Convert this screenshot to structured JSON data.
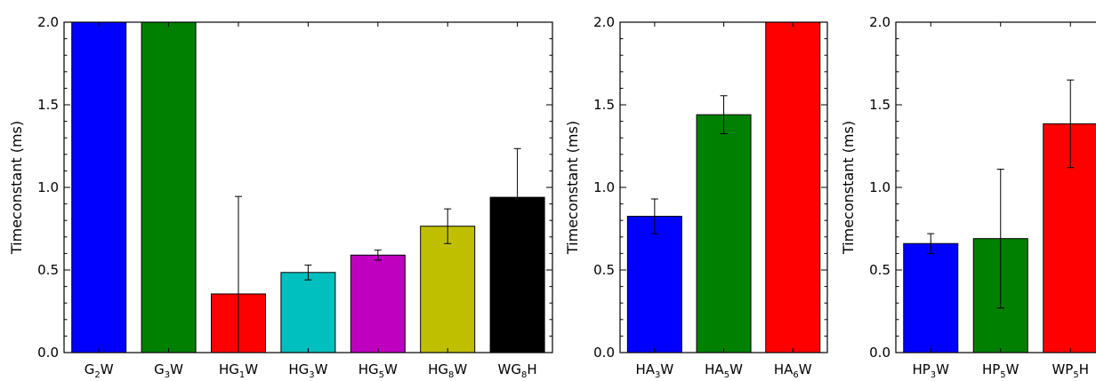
{
  "chart_data": [
    {
      "type": "bar",
      "ylabel": "Timeconstant (ms)",
      "ylim": [
        0,
        2.0
      ],
      "yticks": [
        "0.0",
        "0.5",
        "1.0",
        "1.5",
        "2.0"
      ],
      "grid": false,
      "categories": [
        {
          "base": "G",
          "sub": "2",
          "tail": "W"
        },
        {
          "base": "G",
          "sub": "3",
          "tail": "W"
        },
        {
          "base": "HG",
          "sub": "1",
          "tail": "W"
        },
        {
          "base": "HG",
          "sub": "3",
          "tail": "W"
        },
        {
          "base": "HG",
          "sub": "5",
          "tail": "W"
        },
        {
          "base": "HG",
          "sub": "8",
          "tail": "W"
        },
        {
          "base": "WG",
          "sub": "8",
          "tail": "H"
        }
      ],
      "values": [
        2.0,
        2.0,
        0.355,
        0.485,
        0.59,
        0.765,
        0.94
      ],
      "errors": [
        null,
        null,
        0.59,
        0.045,
        0.03,
        0.105,
        0.295
      ],
      "colors": [
        "#0000ff",
        "#008000",
        "#ff0000",
        "#00bfbf",
        "#bf00bf",
        "#bfbf00",
        "#000000"
      ]
    },
    {
      "type": "bar",
      "ylabel": "Timeconstant (ms)",
      "ylim": [
        0,
        2.0
      ],
      "yticks": [
        "0.0",
        "0.5",
        "1.0",
        "1.5",
        "2.0"
      ],
      "grid": false,
      "categories": [
        {
          "base": "HA",
          "sub": "3",
          "tail": "W"
        },
        {
          "base": "HA",
          "sub": "5",
          "tail": "W"
        },
        {
          "base": "HA",
          "sub": "6",
          "tail": "W"
        }
      ],
      "values": [
        0.825,
        1.44,
        2.0
      ],
      "errors": [
        0.105,
        0.115,
        null
      ],
      "colors": [
        "#0000ff",
        "#008000",
        "#ff0000"
      ]
    },
    {
      "type": "bar",
      "ylabel": "Timeconstant (ms)",
      "ylim": [
        0,
        2.0
      ],
      "yticks": [
        "0.0",
        "0.5",
        "1.0",
        "1.5",
        "2.0"
      ],
      "grid": false,
      "categories": [
        {
          "base": "HP",
          "sub": "3",
          "tail": "W"
        },
        {
          "base": "HP",
          "sub": "5",
          "tail": "W"
        },
        {
          "base": "WP",
          "sub": "5",
          "tail": "H"
        }
      ],
      "values": [
        0.66,
        0.69,
        1.385
      ],
      "errors": [
        0.06,
        0.42,
        0.265
      ],
      "colors": [
        "#0000ff",
        "#008000",
        "#ff0000"
      ]
    }
  ]
}
